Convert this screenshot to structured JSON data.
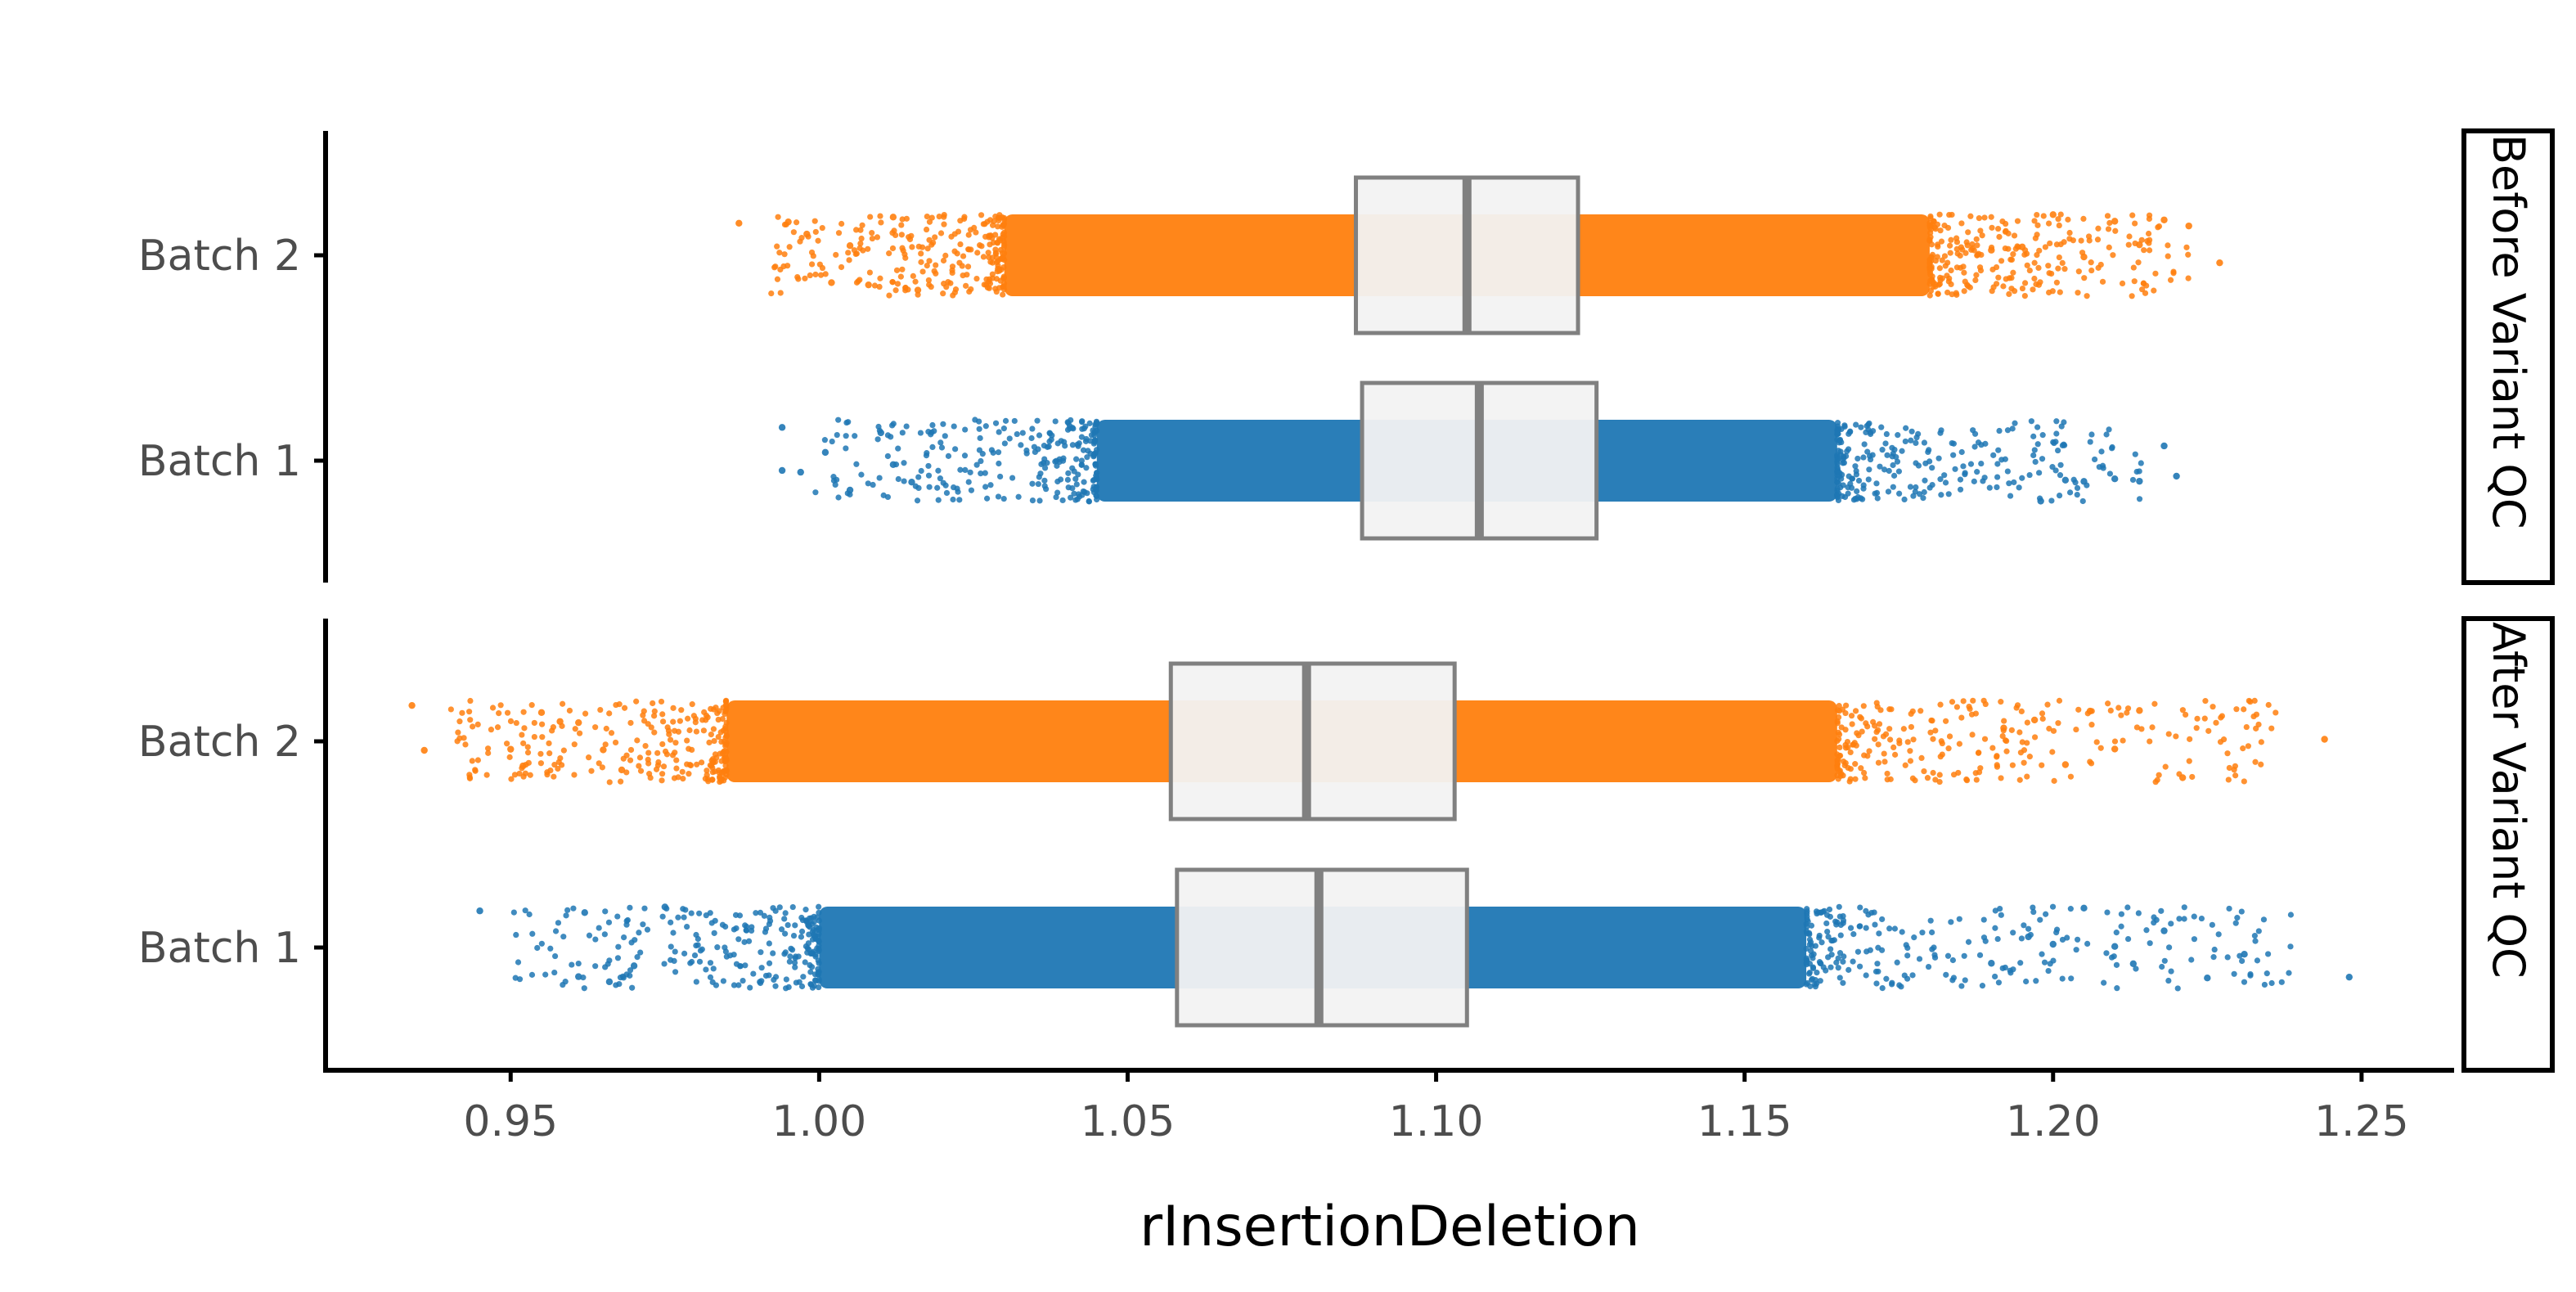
{
  "chart_data": {
    "type": "scatter",
    "subtype": "jittered strip plot with boxplot overlay, faceted",
    "xlabel": "rInsertionDeletion",
    "ylabel": "",
    "xlim": [
      0.92,
      1.265
    ],
    "x_ticks": [
      "0.95",
      "1.00",
      "1.05",
      "1.10",
      "1.15",
      "1.20",
      "1.25"
    ],
    "x_tick_values": [
      0.95,
      1.0,
      1.05,
      1.1,
      1.15,
      1.2,
      1.25
    ],
    "grid": false,
    "legend": "none",
    "colors": {
      "Batch 1": "#1f77b4",
      "Batch 2": "#ff7f0e",
      "box_fill": "#f2f2f2",
      "box_line": "#808080"
    },
    "categories": [
      "Batch 2",
      "Batch 1"
    ],
    "facets": [
      {
        "label": "Before Variant QC",
        "groups": [
          {
            "name": "Batch 2",
            "box": {
              "q1": 1.087,
              "median": 1.105,
              "q3": 1.123
            },
            "core_range": [
              1.03,
              1.18
            ],
            "x_min": 0.987,
            "x_max": 1.227,
            "outliers": [
              0.987,
              0.995,
              0.998,
              1.002,
              1.005,
              1.008,
              1.012,
              1.016,
              1.19,
              1.195,
              1.2,
              1.205,
              1.21,
              1.214,
              1.218,
              1.222,
              1.227
            ]
          },
          {
            "name": "Batch 1",
            "box": {
              "q1": 1.088,
              "median": 1.107,
              "q3": 1.126
            },
            "core_range": [
              1.045,
              1.165
            ],
            "x_min": 0.994,
            "x_max": 1.22,
            "outliers": [
              0.994,
              0.994,
              0.997,
              1.001,
              1.005,
              1.01,
              1.012,
              1.015,
              1.198,
              1.202,
              1.205,
              1.21,
              1.214,
              1.218,
              1.22
            ]
          }
        ]
      },
      {
        "label": "After Variant QC",
        "groups": [
          {
            "name": "Batch 2",
            "box": {
              "q1": 1.057,
              "median": 1.079,
              "q3": 1.103
            },
            "core_range": [
              0.985,
              1.165
            ],
            "x_min": 0.934,
            "x_max": 1.244,
            "outliers": [
              0.934,
              0.936,
              0.95,
              0.952,
              0.955,
              0.958,
              0.961,
              0.965,
              0.968,
              1.192,
              1.197,
              1.202,
              1.206,
              1.21,
              1.214,
              1.221,
              1.244
            ]
          },
          {
            "name": "Batch 1",
            "box": {
              "q1": 1.058,
              "median": 1.081,
              "q3": 1.105
            },
            "core_range": [
              1.0,
              1.16
            ],
            "x_min": 0.945,
            "x_max": 1.248,
            "outliers": [
              0.945,
              0.961,
              0.962,
              0.966,
              0.97,
              0.975,
              1.19,
              1.196,
              1.2,
              1.205,
              1.21,
              1.213,
              1.218,
              1.225,
              1.231,
              1.248
            ]
          }
        ]
      }
    ]
  }
}
